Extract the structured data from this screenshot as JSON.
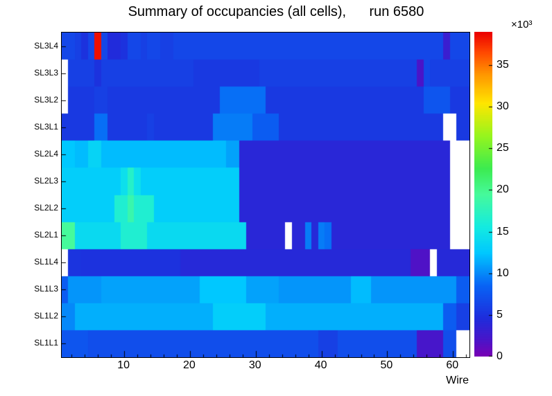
{
  "title": "Summary of occupancies (all cells),      run 6580",
  "labels": {
    "xlabel": "Wire",
    "multiplier": "×10³"
  },
  "chart_data": {
    "type": "heatmap",
    "title": "Summary of occupancies (all cells),      run 6580",
    "xlabel": "Wire",
    "ylabel": "",
    "x_range": [
      0.5,
      62.5
    ],
    "x_ticks": [
      10,
      20,
      30,
      40,
      50,
      60
    ],
    "rows": [
      "SL3L4",
      "SL3L3",
      "SL3L2",
      "SL3L1",
      "SL2L4",
      "SL2L3",
      "SL2L2",
      "SL2L1",
      "SL1L4",
      "SL1L3",
      "SL1L2",
      "SL1L1"
    ],
    "zmin": 0,
    "zmax": 39000,
    "z_unit_multiplier": "×10³",
    "colorbar_ticks": [
      0,
      5,
      10,
      15,
      20,
      25,
      30,
      35
    ],
    "legend_position": "right",
    "grid": false,
    "palette": [
      {
        "pos": 0.0,
        "color": "#7a00b4"
      },
      {
        "pos": 0.05,
        "color": "#4b14c8"
      },
      {
        "pos": 0.12,
        "color": "#1e2ddc"
      },
      {
        "pos": 0.22,
        "color": "#0864f5"
      },
      {
        "pos": 0.32,
        "color": "#00c8ff"
      },
      {
        "pos": 0.4,
        "color": "#14ebe1"
      },
      {
        "pos": 0.5,
        "color": "#46fa9b"
      },
      {
        "pos": 0.58,
        "color": "#3ceb50"
      },
      {
        "pos": 0.68,
        "color": "#96f51e"
      },
      {
        "pos": 0.78,
        "color": "#ffe600"
      },
      {
        "pos": 0.87,
        "color": "#ff9600"
      },
      {
        "pos": 0.94,
        "color": "#ff4600"
      },
      {
        "pos": 1.0,
        "color": "#eb0000"
      }
    ],
    "values": [
      [
        6500,
        6500,
        6000,
        5000,
        6500,
        38500,
        6500,
        4500,
        4500,
        5000,
        6500,
        6500,
        6000,
        6500,
        6500,
        6000,
        6000,
        6500,
        6500,
        6500,
        6500,
        6500,
        6500,
        6500,
        6500,
        6500,
        6500,
        6500,
        6500,
        6500,
        6500,
        6500,
        6500,
        6500,
        6500,
        6500,
        6500,
        6500,
        6500,
        6500,
        6500,
        6500,
        6500,
        6500,
        6500,
        6500,
        6500,
        6500,
        6500,
        6500,
        6500,
        6500,
        6500,
        6500,
        6500,
        6500,
        6500,
        6500,
        3000,
        6500,
        6500,
        6500
      ],
      [
        null,
        6000,
        6000,
        6000,
        6000,
        5000,
        6000,
        6000,
        6000,
        6000,
        6000,
        6000,
        6000,
        6000,
        6000,
        6000,
        6000,
        6000,
        6000,
        6000,
        5500,
        5500,
        5500,
        5500,
        5500,
        5500,
        5500,
        5500,
        5500,
        5500,
        6000,
        6000,
        6000,
        6000,
        6000,
        6000,
        6000,
        6000,
        6000,
        6000,
        6000,
        6000,
        6000,
        6000,
        6000,
        6000,
        6000,
        6000,
        6000,
        6000,
        6000,
        6000,
        6000,
        6000,
        2000,
        6500,
        6000,
        6000,
        6000,
        6000,
        6000,
        6000
      ],
      [
        null,
        5500,
        5500,
        5500,
        5500,
        6000,
        6000,
        5500,
        5500,
        5500,
        5500,
        5500,
        5500,
        5500,
        5500,
        5500,
        5500,
        5500,
        5500,
        5500,
        5500,
        5500,
        5500,
        5500,
        9000,
        9000,
        9000,
        9000,
        9000,
        9000,
        9000,
        5500,
        5500,
        5500,
        5500,
        5500,
        5500,
        5500,
        5500,
        5500,
        5500,
        5500,
        5500,
        5500,
        5500,
        5500,
        5500,
        5500,
        5500,
        5500,
        5500,
        5500,
        5500,
        5500,
        5500,
        7500,
        7500,
        7500,
        7500,
        5500,
        5500,
        5500
      ],
      [
        5500,
        5500,
        5500,
        5500,
        5500,
        9000,
        9000,
        5500,
        5500,
        5500,
        5500,
        5500,
        5500,
        6000,
        5500,
        5500,
        5500,
        5500,
        5500,
        5500,
        5500,
        5500,
        5500,
        9500,
        9500,
        9500,
        9500,
        9500,
        9500,
        8000,
        8000,
        8000,
        8000,
        5500,
        5500,
        5500,
        5500,
        5500,
        5500,
        5500,
        5500,
        5500,
        5500,
        5500,
        5500,
        5500,
        5500,
        5500,
        5500,
        5500,
        5500,
        5500,
        5500,
        5500,
        5500,
        5500,
        5500,
        5500,
        null,
        null,
        5500,
        5500
      ],
      [
        12500,
        12500,
        12000,
        12000,
        13500,
        13500,
        12000,
        12000,
        12000,
        12000,
        12000,
        12000,
        12000,
        12000,
        12000,
        12000,
        12000,
        12000,
        12000,
        12000,
        12000,
        12000,
        12000,
        12000,
        12000,
        11000,
        11000,
        4000,
        4000,
        4000,
        4000,
        4000,
        4000,
        4000,
        4000,
        4000,
        4000,
        4000,
        4000,
        4000,
        4000,
        4000,
        4000,
        4000,
        4000,
        4000,
        4000,
        4000,
        4000,
        4000,
        4000,
        4000,
        4000,
        4000,
        4000,
        4000,
        4000,
        4000,
        4000,
        null,
        null,
        null
      ],
      [
        13000,
        13000,
        13000,
        13000,
        13000,
        13000,
        13000,
        13000,
        13000,
        14500,
        17000,
        14500,
        13000,
        13000,
        13000,
        13000,
        13000,
        13000,
        13000,
        13000,
        13000,
        13000,
        13000,
        13000,
        13000,
        13000,
        13000,
        4000,
        4000,
        4000,
        4000,
        4000,
        4000,
        4000,
        4000,
        4000,
        4000,
        4000,
        4000,
        4000,
        4000,
        4000,
        4000,
        4000,
        4000,
        4000,
        4000,
        4000,
        4000,
        4000,
        4000,
        4000,
        4000,
        4000,
        4000,
        4000,
        4000,
        4000,
        4000,
        null,
        null,
        null
      ],
      [
        13000,
        13000,
        13000,
        13000,
        13000,
        13000,
        13000,
        13000,
        16500,
        16500,
        18500,
        16500,
        16500,
        16500,
        13000,
        13000,
        13000,
        13000,
        13000,
        13000,
        13000,
        13000,
        13000,
        13000,
        13000,
        13000,
        13000,
        4000,
        4000,
        4000,
        4000,
        4000,
        4000,
        4000,
        4000,
        4000,
        4000,
        4000,
        4000,
        4000,
        4000,
        4000,
        4000,
        4000,
        4000,
        4000,
        4000,
        4000,
        4000,
        4000,
        4000,
        4000,
        4000,
        4000,
        4000,
        4000,
        4000,
        4000,
        4000,
        null,
        null,
        null
      ],
      [
        19500,
        19500,
        14000,
        14000,
        14000,
        14000,
        14000,
        14000,
        14000,
        16500,
        16500,
        16500,
        16500,
        14000,
        14000,
        14000,
        14000,
        14000,
        14000,
        14000,
        14000,
        14000,
        14000,
        14000,
        14000,
        14000,
        14000,
        14000,
        4000,
        4000,
        4000,
        4000,
        4000,
        4000,
        null,
        4000,
        4000,
        9500,
        4200,
        9500,
        9000,
        4000,
        4000,
        4000,
        4000,
        4000,
        4000,
        4000,
        4000,
        4000,
        4000,
        4000,
        4000,
        4000,
        4000,
        4000,
        4000,
        4000,
        4000,
        null,
        null,
        null
      ],
      [
        null,
        5200,
        5200,
        5000,
        5000,
        5000,
        5000,
        5000,
        5000,
        5000,
        5000,
        5000,
        5000,
        5000,
        5000,
        5000,
        5000,
        5000,
        4200,
        4200,
        4200,
        4200,
        4200,
        4200,
        4200,
        4200,
        4200,
        4200,
        4200,
        4200,
        4200,
        4200,
        4200,
        4200,
        4200,
        4200,
        4200,
        4200,
        4200,
        4200,
        4200,
        4200,
        4200,
        4200,
        4200,
        4200,
        4200,
        4200,
        4200,
        4200,
        4200,
        4200,
        4200,
        1800,
        1800,
        1800,
        null,
        4200,
        4200,
        4200,
        4200,
        4200
      ],
      [
        8000,
        10500,
        10500,
        10500,
        10500,
        10500,
        11000,
        11000,
        11000,
        11000,
        11000,
        11000,
        11000,
        11000,
        11000,
        11000,
        11000,
        11000,
        11000,
        11000,
        11000,
        12500,
        12500,
        12500,
        12500,
        12500,
        12500,
        12500,
        11000,
        11000,
        11000,
        11000,
        11000,
        10500,
        10500,
        10500,
        10500,
        10500,
        10500,
        10500,
        10500,
        10500,
        10500,
        10500,
        12000,
        12000,
        12000,
        10500,
        10500,
        10500,
        10500,
        10500,
        10500,
        10500,
        10500,
        10500,
        10500,
        10500,
        10500,
        10500,
        8000,
        8000
      ],
      [
        10000,
        10000,
        11500,
        11500,
        11500,
        11500,
        11500,
        11500,
        11500,
        11500,
        11500,
        11500,
        11500,
        11500,
        11500,
        11500,
        11500,
        11500,
        11500,
        11500,
        11500,
        11500,
        11500,
        13000,
        13000,
        13000,
        13000,
        13000,
        13000,
        13000,
        13000,
        11500,
        11500,
        11500,
        11500,
        11500,
        11500,
        11500,
        11500,
        11500,
        11500,
        11500,
        11500,
        11500,
        11500,
        11500,
        11500,
        11500,
        11500,
        11500,
        11500,
        11500,
        11500,
        11500,
        11500,
        11500,
        11500,
        11500,
        8000,
        8000,
        6000,
        6000
      ],
      [
        7500,
        7500,
        7500,
        7500,
        7000,
        7000,
        7000,
        7000,
        7000,
        7000,
        7000,
        7000,
        7000,
        7000,
        7000,
        7000,
        7000,
        7000,
        7000,
        7000,
        7000,
        7000,
        7000,
        7000,
        7000,
        7000,
        7000,
        7000,
        7000,
        7000,
        7000,
        7000,
        7000,
        7000,
        7000,
        7000,
        7000,
        7000,
        7000,
        6000,
        6000,
        6000,
        7000,
        7000,
        7000,
        7000,
        7000,
        7000,
        7000,
        7000,
        7000,
        7000,
        7000,
        7000,
        2200,
        2200,
        2200,
        2200,
        7000,
        7000,
        null,
        null
      ]
    ]
  }
}
